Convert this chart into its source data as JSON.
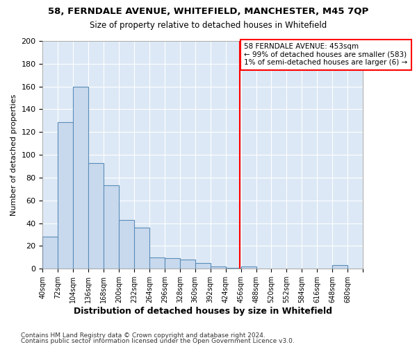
{
  "title1": "58, FERNDALE AVENUE, WHITEFIELD, MANCHESTER, M45 7QP",
  "title2": "Size of property relative to detached houses in Whitefield",
  "xlabel": "Distribution of detached houses by size in Whitefield",
  "ylabel": "Number of detached properties",
  "bin_labels": [
    "40sqm",
    "72sqm",
    "104sqm",
    "136sqm",
    "168sqm",
    "200sqm",
    "232sqm",
    "264sqm",
    "296sqm",
    "328sqm",
    "360sqm",
    "392sqm",
    "424sqm",
    "456sqm",
    "488sqm",
    "520sqm",
    "552sqm",
    "584sqm",
    "616sqm",
    "648sqm",
    "680sqm"
  ],
  "bin_edges": [
    40,
    72,
    104,
    136,
    168,
    200,
    232,
    264,
    296,
    328,
    360,
    392,
    424,
    456,
    488,
    520,
    552,
    584,
    616,
    648,
    680
  ],
  "bar_heights": [
    28,
    129,
    160,
    93,
    73,
    43,
    36,
    10,
    9,
    8,
    5,
    2,
    1,
    2,
    0,
    0,
    0,
    0,
    0,
    3,
    0
  ],
  "bar_color": "#c8d9ee",
  "bar_edge_color": "#5b8db8",
  "vline_x": 453,
  "vline_color": "red",
  "annotation_text": "58 FERNDALE AVENUE: 453sqm\n← 99% of detached houses are smaller (583)\n1% of semi-detached houses are larger (6) →",
  "annotation_box_color": "white",
  "annotation_box_edgecolor": "red",
  "ylim": [
    0,
    200
  ],
  "yticks": [
    0,
    20,
    40,
    60,
    80,
    100,
    120,
    140,
    160,
    180,
    200
  ],
  "footer1": "Contains HM Land Registry data © Crown copyright and database right 2024.",
  "footer2": "Contains public sector information licensed under the Open Government Licence v3.0.",
  "bg_color": "#ffffff",
  "plot_bg_color": "#dce8f5",
  "grid_color": "#ffffff"
}
